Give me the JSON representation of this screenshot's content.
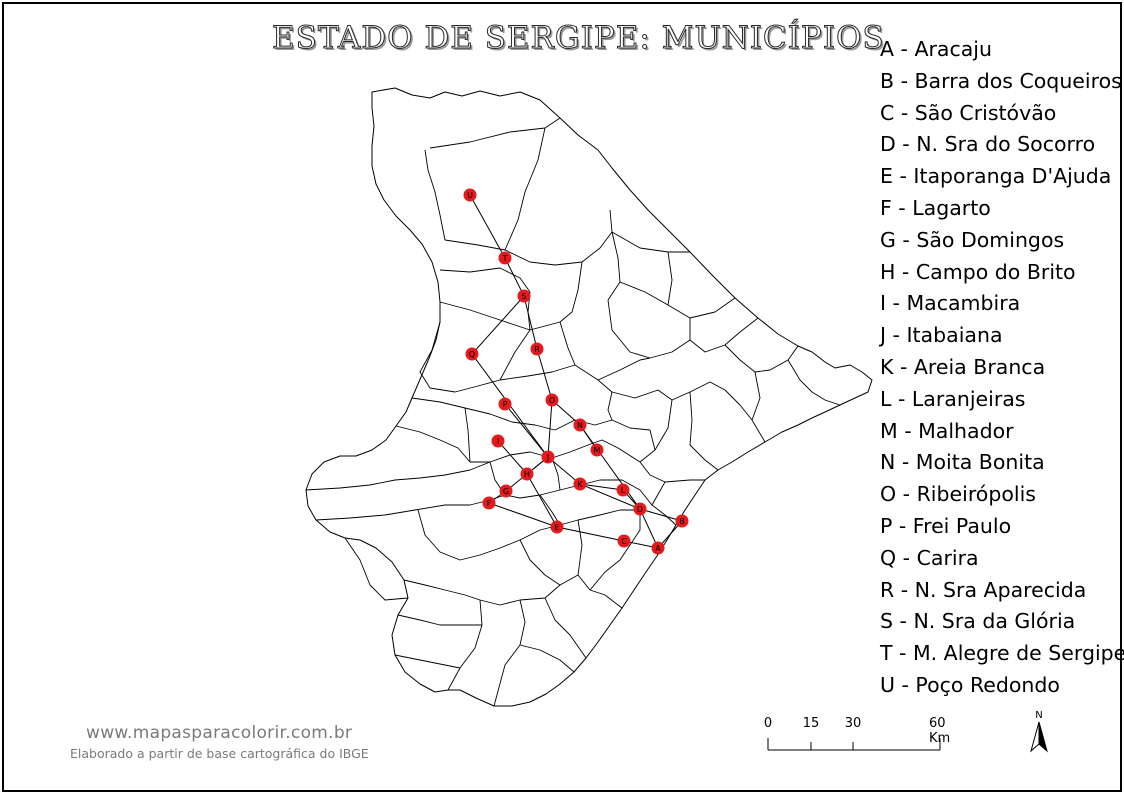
{
  "title": "ESTADO DE SERGIPE: MUNICÍPIOS",
  "legend": [
    "A - Aracaju",
    "B - Barra dos Coqueiros",
    "C - São Cristóvão",
    "D - N. Sra do Socorro",
    "E - Itaporanga D'Ajuda",
    "F - Lagarto",
    "G - São Domingos",
    "H - Campo do Brito",
    "I - Macambira",
    "J - Itabaiana",
    "K - Areia Branca",
    "L - Laranjeiras",
    "M - Malhador",
    "N - Moita Bonita",
    "O - Ribeirópolis",
    "P - Frei Paulo",
    "Q - Carira",
    "R - N. Sra Aparecida",
    "S - N. Sra da Glória",
    "T - M. Alegre de Sergipe",
    "U - Poço Redondo"
  ],
  "markers": [
    "U",
    "T",
    "S",
    "Q",
    "R",
    "P",
    "O",
    "N",
    "I",
    "J",
    "M",
    "H",
    "G",
    "K",
    "L",
    "F",
    "D",
    "E",
    "B",
    "C",
    "A"
  ],
  "marker_color": "#e41a1c",
  "footer": {
    "website": "www.mapasparacolorir.com.br",
    "credit": "Elaborado a partir de base cartográfica do IBGE"
  },
  "scale": {
    "labels": [
      "0",
      "15",
      "30",
      "60 Km"
    ]
  },
  "north_label": "N"
}
